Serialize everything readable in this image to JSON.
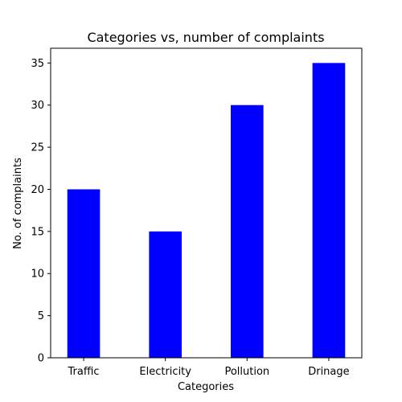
{
  "chart_data": {
    "type": "bar",
    "title": "Categories vs, number of complaints",
    "xlabel": "Categories",
    "ylabel": "No. of complaints",
    "categories": [
      "Traffic",
      "Electricity",
      "Pollution",
      "Drinage"
    ],
    "values": [
      20,
      15,
      30,
      35
    ],
    "ylim": [
      0,
      36.75
    ],
    "yticks": [
      0,
      5,
      10,
      15,
      20,
      25,
      30,
      35
    ],
    "bar_color": "#0000ff",
    "grid": false,
    "legend": "none"
  }
}
